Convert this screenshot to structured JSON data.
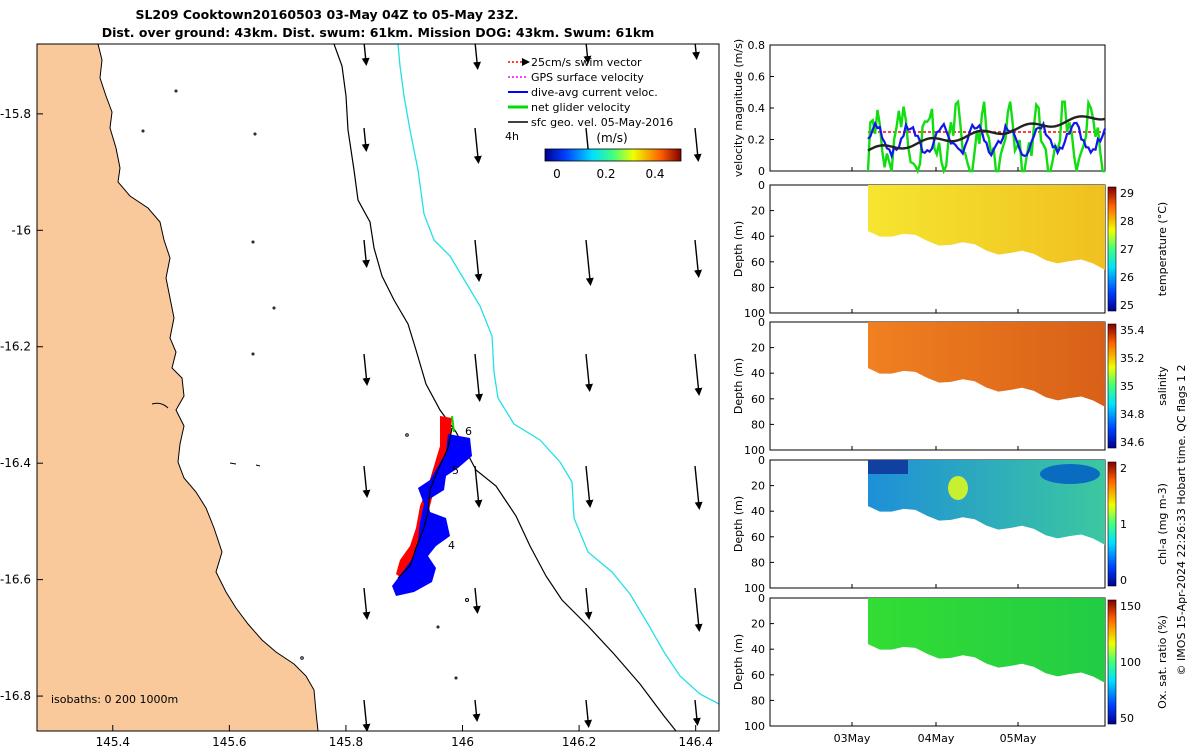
{
  "title": {
    "line1": "SL209 Cooktown20160503 03-May 04Z to 05-May 23Z.",
    "line2": "Dist. over ground: 43km. Dist. swum: 61km. Mission DOG: 43km. Swum: 61km"
  },
  "map": {
    "x_ticks": [
      "145.4",
      "145.6",
      "145.8",
      "146",
      "146.2",
      "146.4"
    ],
    "y_ticks": [
      "-15.8",
      "-16",
      "-16.2",
      "-16.4",
      "-16.6",
      "-16.8"
    ],
    "legend": [
      {
        "label": "25cm/s swim vector",
        "color": "#ff0000"
      },
      {
        "label": "GPS surface velocity",
        "color": "#ff00ff"
      },
      {
        "label": "dive-avg current veloc.",
        "color": "#0000ff"
      },
      {
        "label": "net glider velocity",
        "color": "#00dd00"
      },
      {
        "label": "sfc geo. vel. 05-May-2016",
        "color": "#000000"
      }
    ],
    "legend_extra": "4h",
    "colorbar": {
      "label": "(m/s)",
      "ticks": [
        "0",
        "0.2",
        "0.4"
      ]
    },
    "isobaths_label": "isobaths: 0   200  1000m",
    "track_markers": [
      "6",
      "5",
      "4"
    ],
    "colors": {
      "land": "#f9c99c",
      "isobath_1000": "#22e0e8",
      "glider_track_red": "#ff0000",
      "dive_avg_blue": "#0000ff"
    }
  },
  "velocity_panel": {
    "ylabel": "velocity magnitude (m/s)",
    "y_ticks": [
      "0",
      "0.2",
      "0.4",
      "0.6",
      "0.8"
    ]
  },
  "sections": [
    {
      "id": "temperature",
      "cb_label": "temperature (°C)",
      "cb_ticks": [
        "29",
        "28",
        "27",
        "26",
        "25"
      ],
      "colors": [
        "#f6e530",
        "#f0c020"
      ]
    },
    {
      "id": "salinity",
      "cb_label": "salinity",
      "cb_ticks": [
        "35.4",
        "35.2",
        "35",
        "34.8",
        "34.6"
      ],
      "colors": [
        "#f08020",
        "#d86018"
      ]
    },
    {
      "id": "chla",
      "cb_label": "chl-a (mg m-3)",
      "cb_ticks": [
        "2",
        "1",
        "0"
      ],
      "colors": [
        "#1e8fd8",
        "#3cc8a0"
      ]
    },
    {
      "id": "oxygen",
      "cb_label": "Ox. sat. ratio (%)",
      "cb_ticks": [
        "150",
        "100",
        "50"
      ],
      "colors": [
        "#33dd33",
        "#22cc44"
      ]
    }
  ],
  "depth_axis": {
    "ylabel": "Depth (m)",
    "ticks": [
      "0",
      "20",
      "40",
      "60",
      "80",
      "100"
    ]
  },
  "time_ticks": [
    "03May",
    "04May",
    "05May"
  ],
  "side_note": "© IMOS 15-Apr-2024 22:26:33 Hobart time. QC flags 1  2"
}
